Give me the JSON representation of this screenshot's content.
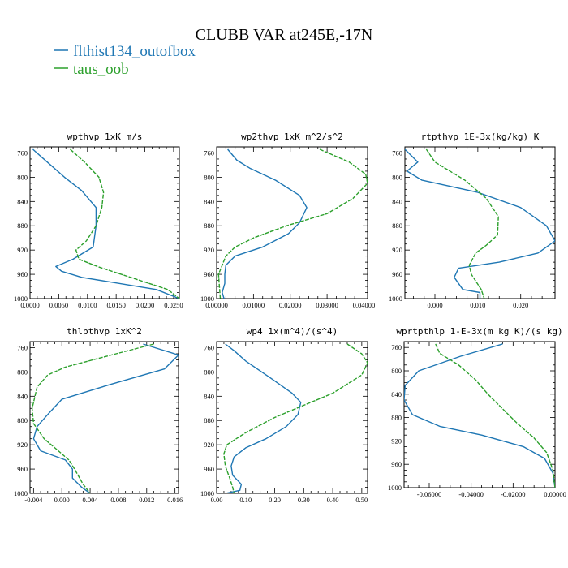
{
  "figure_title": "CLUBB VAR at245E,-17N",
  "legend": [
    {
      "label": "flthist134_outofbox",
      "color": "#1f77b4"
    },
    {
      "label": "taus_oob",
      "color": "#2ca02c"
    }
  ],
  "chart_data": [
    {
      "type": "line",
      "title": "wpthvp  1xK m/s",
      "xlim": [
        0,
        0.026
      ],
      "ylim": [
        1000,
        750
      ],
      "y_inverted": true,
      "x_ticks": [
        0,
        0.005,
        0.01,
        0.015,
        0.02,
        0.025
      ],
      "x_tick_labels": [
        "0.0000",
        "0.0050",
        "0.0100",
        "0.0150",
        "0.0200",
        "0.0250"
      ],
      "y_ticks": [
        760,
        800,
        840,
        880,
        920,
        960,
        1000
      ],
      "y_tick_labels": [
        "760",
        "800",
        "840",
        "880",
        "920",
        "960",
        "1000"
      ],
      "series": [
        {
          "name": "flthist134_outofbox",
          "x": [
            0.0005,
            0.003,
            0.006,
            0.009,
            0.0115,
            0.0115,
            0.011,
            0.0075,
            0.0045,
            0.0055,
            0.009,
            0.022,
            0.026
          ],
          "y": [
            754,
            775,
            800,
            822,
            850,
            880,
            915,
            935,
            947,
            955,
            965,
            985,
            1000
          ]
        },
        {
          "name": "taus_oob",
          "x": [
            0.007,
            0.0095,
            0.012,
            0.0128,
            0.0125,
            0.0115,
            0.0098,
            0.008,
            0.0085,
            0.012,
            0.024,
            0.026
          ],
          "y": [
            754,
            775,
            800,
            825,
            850,
            880,
            905,
            920,
            935,
            948,
            985,
            1000
          ]
        }
      ]
    },
    {
      "type": "line",
      "title": "wp2thvp  1xK m^2/s^2",
      "xlim": [
        0,
        0.041
      ],
      "ylim": [
        1000,
        750
      ],
      "y_inverted": true,
      "x_ticks": [
        0,
        0.01,
        0.02,
        0.03,
        0.04
      ],
      "x_tick_labels": [
        "0.00000",
        "0.01000",
        "0.02000",
        "0.03000",
        "0.04000"
      ],
      "y_ticks": [
        760,
        800,
        840,
        880,
        920,
        960,
        1000
      ],
      "y_tick_labels": [
        "760",
        "800",
        "840",
        "880",
        "920",
        "960",
        "1000"
      ],
      "series": [
        {
          "name": "flthist134_outofbox",
          "x": [
            0.003,
            0.0055,
            0.009,
            0.016,
            0.0225,
            0.0245,
            0.0225,
            0.0195,
            0.0125,
            0.005,
            0.0025,
            0.0022,
            0.0022,
            0.0015,
            0.002
          ],
          "y": [
            754,
            772,
            785,
            805,
            830,
            850,
            875,
            893,
            915,
            930,
            945,
            960,
            975,
            990,
            1000
          ]
        },
        {
          "name": "taus_oob",
          "x": [
            0.028,
            0.036,
            0.0405,
            0.041,
            0.037,
            0.03,
            0.019,
            0.01,
            0.005,
            0.0025,
            0.0005,
            0.001
          ],
          "y": [
            754,
            775,
            795,
            810,
            835,
            860,
            880,
            900,
            915,
            930,
            960,
            1000
          ]
        }
      ]
    },
    {
      "type": "line",
      "title": "rtpthvp  1E-3x(kg/kg) K",
      "xlim": [
        -0.007,
        0.028
      ],
      "ylim": [
        1000,
        750
      ],
      "y_inverted": true,
      "x_ticks": [
        0,
        0.01,
        0.02
      ],
      "x_tick_labels": [
        "0.000",
        "0.010",
        "0.020"
      ],
      "y_ticks": [
        760,
        800,
        840,
        880,
        920,
        960,
        1000
      ],
      "y_tick_labels": [
        "760",
        "800",
        "840",
        "880",
        "920",
        "960",
        "1000"
      ],
      "series": [
        {
          "name": "flthist134_outofbox",
          "x": [
            -0.007,
            -0.004,
            -0.0065,
            -0.003,
            0.01,
            0.02,
            0.026,
            0.028,
            0.024,
            0.015,
            0.0055,
            0.0045,
            0.0065,
            0.0105,
            0.0105
          ],
          "y": [
            754,
            775,
            790,
            805,
            825,
            850,
            880,
            905,
            925,
            940,
            950,
            965,
            985,
            990,
            1000
          ]
        },
        {
          "name": "taus_oob",
          "x": [
            -0.002,
            0.0,
            0.007,
            0.012,
            0.0148,
            0.0146,
            0.012,
            0.0095,
            0.008,
            0.0085,
            0.0108,
            0.0115
          ],
          "y": [
            754,
            775,
            805,
            835,
            865,
            895,
            912,
            925,
            945,
            960,
            985,
            1000
          ]
        }
      ]
    },
    {
      "type": "line",
      "title": "thlpthvp  1xK^2",
      "xlim": [
        -0.0045,
        0.0165
      ],
      "ylim": [
        1000,
        750
      ],
      "y_inverted": true,
      "x_ticks": [
        -0.004,
        0.0,
        0.004,
        0.008,
        0.012,
        0.016
      ],
      "x_tick_labels": [
        "-0.004",
        "0.000",
        "0.004",
        "0.008",
        "0.012",
        "0.016"
      ],
      "y_ticks": [
        760,
        800,
        840,
        880,
        920,
        960,
        1000
      ],
      "y_tick_labels": [
        "760",
        "800",
        "840",
        "880",
        "920",
        "960",
        "1000"
      ],
      "series": [
        {
          "name": "flthist134_outofbox",
          "x": [
            0.0115,
            0.0165,
            0.0145,
            0.007,
            0.0,
            -0.002,
            -0.0035,
            -0.004,
            -0.003,
            0.0005,
            0.0015,
            0.0015,
            0.0028,
            0.004
          ],
          "y": [
            754,
            772,
            795,
            820,
            845,
            870,
            890,
            910,
            930,
            945,
            960,
            975,
            990,
            1000
          ]
        },
        {
          "name": "taus_oob",
          "x": [
            0.013,
            0.007,
            0.0005,
            -0.002,
            -0.0035,
            -0.0042,
            -0.004,
            -0.0025,
            -0.0005,
            0.001,
            0.0018,
            0.003,
            0.004
          ],
          "y": [
            754,
            772,
            792,
            805,
            825,
            860,
            885,
            910,
            930,
            945,
            960,
            985,
            1000
          ]
        }
      ]
    },
    {
      "type": "line",
      "title": "wp4  1x(m^4)/(s^4)",
      "xlim": [
        0,
        0.52
      ],
      "ylim": [
        1000,
        750
      ],
      "y_inverted": true,
      "x_ticks": [
        0,
        0.1,
        0.2,
        0.3,
        0.4,
        0.5
      ],
      "x_tick_labels": [
        "0.00",
        "0.10",
        "0.20",
        "0.30",
        "0.40",
        "0.50"
      ],
      "y_ticks": [
        760,
        800,
        840,
        880,
        920,
        960,
        1000
      ],
      "y_tick_labels": [
        "760",
        "800",
        "840",
        "880",
        "920",
        "960",
        "1000"
      ],
      "series": [
        {
          "name": "flthist134_outofbox",
          "x": [
            0.03,
            0.06,
            0.1,
            0.18,
            0.26,
            0.29,
            0.28,
            0.24,
            0.17,
            0.1,
            0.06,
            0.05,
            0.055,
            0.085,
            0.08,
            0.03
          ],
          "y": [
            754,
            765,
            782,
            808,
            835,
            850,
            870,
            890,
            910,
            925,
            940,
            955,
            970,
            985,
            995,
            1000
          ]
        },
        {
          "name": "taus_oob",
          "x": [
            0.45,
            0.5,
            0.52,
            0.5,
            0.4,
            0.3,
            0.2,
            0.1,
            0.035,
            0.025,
            0.03,
            0.045,
            0.055,
            0.06
          ],
          "y": [
            754,
            770,
            785,
            805,
            835,
            855,
            875,
            900,
            920,
            935,
            955,
            975,
            990,
            1000
          ]
        }
      ]
    },
    {
      "type": "line",
      "title": "wprtpthlp  1-E-3x(m kg K)/(s kg)",
      "xlim": [
        -0.072,
        0.0
      ],
      "ylim": [
        1000,
        750
      ],
      "y_inverted": true,
      "x_ticks": [
        -0.06,
        -0.04,
        -0.02,
        0.0
      ],
      "x_tick_labels": [
        "-0.06000",
        "-0.04000",
        "-0.02000",
        "0.00000"
      ],
      "y_ticks": [
        760,
        800,
        840,
        880,
        920,
        960,
        1000
      ],
      "y_tick_labels": [
        "760",
        "800",
        "840",
        "880",
        "920",
        "960",
        "1000"
      ],
      "series": [
        {
          "name": "flthist134_outofbox",
          "x": [
            -0.025,
            -0.045,
            -0.065,
            -0.0715,
            -0.072,
            -0.068,
            -0.055,
            -0.035,
            -0.015,
            -0.005,
            -0.001,
            0.0
          ],
          "y": [
            754,
            775,
            800,
            825,
            850,
            875,
            895,
            910,
            930,
            950,
            975,
            1000
          ]
        },
        {
          "name": "taus_oob",
          "x": [
            -0.057,
            -0.055,
            -0.046,
            -0.038,
            -0.032,
            -0.025,
            -0.018,
            -0.01,
            -0.004,
            -0.001,
            0.0
          ],
          "y": [
            754,
            770,
            790,
            815,
            840,
            865,
            890,
            915,
            940,
            970,
            1000
          ]
        }
      ]
    }
  ]
}
